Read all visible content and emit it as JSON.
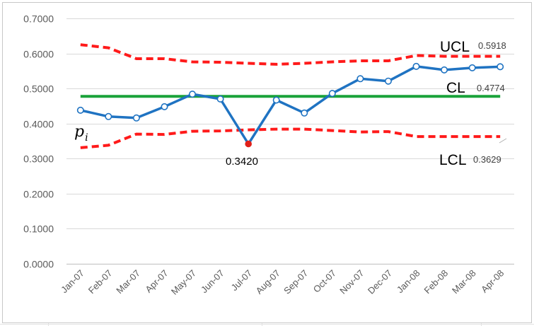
{
  "colors": {
    "p_line": "#1f73c2",
    "cl_line": "#1aa33a",
    "limit_line": "#ff1a1a",
    "highlight_point": "#e0201a",
    "grid": "#d9d9d9"
  },
  "chart_data": {
    "type": "line",
    "title": "",
    "xlabel": "",
    "ylabel": "",
    "ylim": [
      0,
      0.7
    ],
    "y_ticks": [
      "0.0000",
      "0.1000",
      "0.2000",
      "0.3000",
      "0.4000",
      "0.5000",
      "0.6000",
      "0.7000"
    ],
    "grid": true,
    "legend": "none",
    "categories": [
      "Jan-07",
      "Feb-07",
      "Mar-07",
      "Apr-07",
      "May-07",
      "Jun-07",
      "Jul-07",
      "Aug-07",
      "Sep-07",
      "Oct-07",
      "Nov-07",
      "Dec-07",
      "Jan-08",
      "Feb-08",
      "Mar-08",
      "Apr-08"
    ],
    "series": [
      {
        "name": "p_i",
        "values": [
          0.438,
          0.42,
          0.416,
          0.448,
          0.484,
          0.47,
          0.342,
          0.467,
          0.43,
          0.486,
          0.528,
          0.521,
          0.563,
          0.553,
          0.559,
          0.562
        ]
      },
      {
        "name": "UCL",
        "values": [
          0.625,
          0.616,
          0.585,
          0.585,
          0.576,
          0.575,
          0.572,
          0.569,
          0.572,
          0.576,
          0.579,
          0.579,
          0.594,
          0.5918,
          0.5918,
          0.5918
        ]
      },
      {
        "name": "CL",
        "values": [
          0.4774,
          0.4774,
          0.4774,
          0.4774,
          0.4774,
          0.4774,
          0.4774,
          0.4774,
          0.4774,
          0.4774,
          0.4774,
          0.4774,
          0.4774,
          0.4774,
          0.4774,
          0.4774
        ]
      },
      {
        "name": "LCL",
        "values": [
          0.331,
          0.338,
          0.37,
          0.369,
          0.378,
          0.379,
          0.382,
          0.384,
          0.384,
          0.38,
          0.376,
          0.377,
          0.3629,
          0.3629,
          0.3629,
          0.3629
        ]
      }
    ],
    "annotations": {
      "pi_label": "p",
      "pi_subscript": "i",
      "ucl_name": "UCL",
      "ucl_value": "0.5918",
      "cl_name": "CL",
      "cl_value": "0.4774",
      "lcl_name": "LCL",
      "lcl_value": "0.3629",
      "min_point_label": "0.3420",
      "min_point_index": 6
    }
  }
}
